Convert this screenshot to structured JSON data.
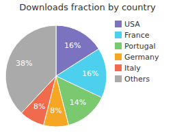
{
  "chart_data": {
    "type": "pie",
    "title": "Downloads fraction by country",
    "categories": [
      "USA",
      "France",
      "Portugal",
      "Germany",
      "Italy",
      "Others"
    ],
    "values": [
      16,
      16,
      14,
      8,
      8,
      38
    ],
    "value_labels": [
      "16%",
      "16%",
      "14%",
      "8%",
      "8%",
      "38%"
    ],
    "colors": [
      "#7b72c0",
      "#4dd0ee",
      "#7ac96e",
      "#f5a623",
      "#f06a4e",
      "#aaaaaa"
    ],
    "data_labels": true,
    "legend": "right"
  }
}
